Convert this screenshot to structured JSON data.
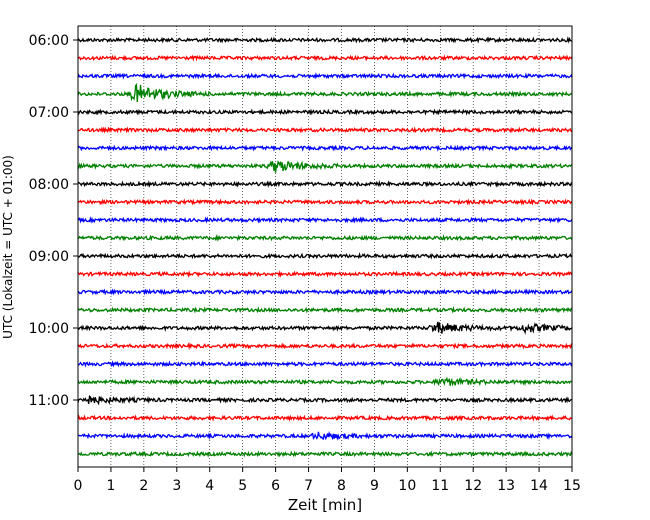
{
  "chart_data": {
    "type": "line",
    "title": "",
    "xlabel": "Zeit  [min]",
    "ylabel": "UTC (Lokalzeit = UTC + 01:00)",
    "xlim": [
      0,
      15
    ],
    "x_ticks": [
      0,
      1,
      2,
      3,
      4,
      5,
      6,
      7,
      8,
      9,
      10,
      11,
      12,
      13,
      14,
      15
    ],
    "y_tick_labels": [
      "06:00",
      "07:00",
      "08:00",
      "09:00",
      "10:00",
      "11:00"
    ],
    "trace_start_times": [
      "06:00",
      "06:15",
      "06:30",
      "06:45",
      "07:00",
      "07:15",
      "07:30",
      "07:45",
      "08:00",
      "08:15",
      "08:30",
      "08:45",
      "09:00",
      "09:15",
      "09:30",
      "09:45",
      "10:00",
      "10:15",
      "10:30",
      "10:45",
      "11:00",
      "11:15",
      "11:30",
      "11:45"
    ],
    "colors": [
      "#000000",
      "#ff0000",
      "#0000ff",
      "#008000"
    ],
    "grid": {
      "x": true,
      "y": false,
      "style": "dotted"
    },
    "events": [
      {
        "trace": "06:45",
        "minute": 1.8,
        "amplitude": 1.0
      },
      {
        "trace": "07:45",
        "minute": 6.0,
        "amplitude": 0.6
      },
      {
        "trace": "10:00",
        "minute": 10.9,
        "amplitude": 0.55
      },
      {
        "trace": "10:00",
        "minute": 13.6,
        "amplitude": 0.4
      },
      {
        "trace": "10:45",
        "minute": 11.1,
        "amplitude": 0.35
      },
      {
        "trace": "11:00",
        "minute": 0.2,
        "amplitude": 0.4
      },
      {
        "trace": "11:30",
        "minute": 7.3,
        "amplitude": 0.3
      }
    ]
  }
}
